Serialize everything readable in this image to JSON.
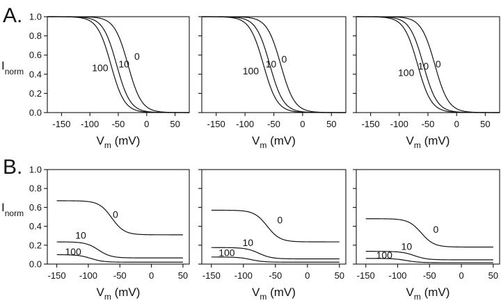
{
  "figure": {
    "panel_a_label": "A.",
    "panel_b_label": "B.",
    "y_label_main": "I",
    "y_label_sub": "norm",
    "x_label_main": "V",
    "x_label_sub": "m",
    "x_label_unit": " (mV)"
  },
  "chart_data": [
    {
      "panel": "A",
      "column": 1,
      "type": "line",
      "xlim": [
        -175,
        75
      ],
      "ylim": [
        0,
        1
      ],
      "xticks": [
        -150,
        -100,
        -50,
        0,
        50
      ],
      "yticks": [
        0.0,
        0.2,
        0.4,
        0.6,
        0.8,
        1.0
      ],
      "ytick_labels": [
        "0.0",
        "0.2",
        "0.4",
        "0.6",
        "0.8",
        "1.0"
      ],
      "show_ytick_labels": true,
      "xlabel": "Vm (mV)",
      "ylabel": "Inorm",
      "series": [
        {
          "name": "0",
          "label": "0",
          "label_at": [
            -17,
            0.55
          ],
          "base": 0.0,
          "amp": 1.0,
          "v_half": -33,
          "slope": 12
        },
        {
          "name": "10",
          "label": "10",
          "label_at": [
            -40,
            0.47
          ],
          "base": 0.0,
          "amp": 1.0,
          "v_half": -53,
          "slope": 12
        },
        {
          "name": "100",
          "label": "100",
          "label_at": [
            -82,
            0.43
          ],
          "base": 0.0,
          "amp": 1.0,
          "v_half": -63,
          "slope": 12
        }
      ]
    },
    {
      "panel": "A",
      "column": 2,
      "type": "line",
      "xlim": [
        -175,
        75
      ],
      "ylim": [
        0,
        1
      ],
      "xticks": [
        -150,
        -100,
        -50,
        0,
        50
      ],
      "yticks": [
        0.0,
        0.2,
        0.4,
        0.6,
        0.8,
        1.0
      ],
      "ytick_labels": [
        "0.0",
        "0.2",
        "0.4",
        "0.6",
        "0.8",
        "1.0"
      ],
      "show_ytick_labels": false,
      "xlabel": "Vm (mV)",
      "ylabel": "",
      "series": [
        {
          "name": "0",
          "label": "0",
          "label_at": [
            -32,
            0.52
          ],
          "base": 0.0,
          "amp": 1.0,
          "v_half": -38,
          "slope": 12
        },
        {
          "name": "10",
          "label": "10",
          "label_at": [
            -55,
            0.47
          ],
          "base": 0.0,
          "amp": 1.0,
          "v_half": -57,
          "slope": 12
        },
        {
          "name": "100",
          "label": "100",
          "label_at": [
            -90,
            0.4
          ],
          "base": 0.0,
          "amp": 1.0,
          "v_half": -68,
          "slope": 12
        }
      ]
    },
    {
      "panel": "A",
      "column": 3,
      "type": "line",
      "xlim": [
        -175,
        75
      ],
      "ylim": [
        0,
        1
      ],
      "xticks": [
        -150,
        -100,
        -50,
        0,
        50
      ],
      "yticks": [
        0.0,
        0.2,
        0.4,
        0.6,
        0.8,
        1.0
      ],
      "ytick_labels": [
        "0.0",
        "0.2",
        "0.4",
        "0.6",
        "0.8",
        "1.0"
      ],
      "show_ytick_labels": false,
      "xlabel": "Vm (mV)",
      "ylabel": "",
      "series": [
        {
          "name": "0",
          "label": "0",
          "label_at": [
            -32,
            0.47
          ],
          "base": 0.0,
          "amp": 1.0,
          "v_half": -38,
          "slope": 12
        },
        {
          "name": "10",
          "label": "10",
          "label_at": [
            -58,
            0.45
          ],
          "base": 0.0,
          "amp": 1.0,
          "v_half": -58,
          "slope": 12
        },
        {
          "name": "100",
          "label": "100",
          "label_at": [
            -88,
            0.38
          ],
          "base": 0.0,
          "amp": 1.0,
          "v_half": -68,
          "slope": 12
        }
      ]
    },
    {
      "panel": "B",
      "column": 1,
      "type": "line",
      "xlim": [
        -165,
        60
      ],
      "ylim": [
        0,
        1
      ],
      "xticks": [
        -150,
        -100,
        -50,
        0,
        50
      ],
      "yticks": [
        0.0,
        0.2,
        0.4,
        0.6,
        0.8,
        1.0
      ],
      "ytick_labels": [
        "0.0",
        "0.2",
        "0.4",
        "0.6",
        "0.8",
        "1.0"
      ],
      "show_ytick_labels": true,
      "xlabel": "Vm (mV)",
      "ylabel": "Inorm",
      "series": [
        {
          "name": "0",
          "label": "0",
          "label_at": [
            -57,
            0.49
          ],
          "base": 0.31,
          "amp": 0.36,
          "v_half": -63,
          "slope": 10
        },
        {
          "name": "10",
          "label": "10",
          "label_at": [
            -112,
            0.27
          ],
          "base": 0.065,
          "amp": 0.17,
          "v_half": -84,
          "slope": 10
        },
        {
          "name": "100",
          "label": "100",
          "label_at": [
            -124,
            0.095
          ],
          "base": 0.02,
          "amp": 0.08,
          "v_half": -96,
          "slope": 10
        }
      ]
    },
    {
      "panel": "B",
      "column": 2,
      "type": "line",
      "xlim": [
        -165,
        60
      ],
      "ylim": [
        0,
        1
      ],
      "xticks": [
        -150,
        -100,
        -50,
        0,
        50
      ],
      "yticks": [
        0.0,
        0.2,
        0.4,
        0.6,
        0.8,
        1.0
      ],
      "ytick_labels": [
        "0.0",
        "0.2",
        "0.4",
        "0.6",
        "0.8",
        "1.0"
      ],
      "show_ytick_labels": false,
      "xlabel": "Vm (mV)",
      "ylabel": "",
      "series": [
        {
          "name": "0",
          "label": "0",
          "label_at": [
            -43,
            0.43
          ],
          "base": 0.235,
          "amp": 0.335,
          "v_half": -63,
          "slope": 10
        },
        {
          "name": "10",
          "label": "10",
          "label_at": [
            -93,
            0.19
          ],
          "base": 0.055,
          "amp": 0.12,
          "v_half": -76,
          "slope": 10
        },
        {
          "name": "100",
          "label": "100",
          "label_at": [
            -126,
            0.085
          ],
          "base": 0.02,
          "amp": 0.055,
          "v_half": -88,
          "slope": 10
        }
      ]
    },
    {
      "panel": "B",
      "column": 3,
      "type": "line",
      "xlim": [
        -165,
        60
      ],
      "ylim": [
        0,
        1
      ],
      "xticks": [
        -150,
        -100,
        -50,
        0,
        50
      ],
      "yticks": [
        0.0,
        0.2,
        0.4,
        0.6,
        0.8,
        1.0
      ],
      "ytick_labels": [
        "0.0",
        "0.2",
        "0.4",
        "0.6",
        "0.8",
        "1.0"
      ],
      "show_ytick_labels": false,
      "xlabel": "Vm (mV)",
      "ylabel": "",
      "series": [
        {
          "name": "0",
          "label": "0",
          "label_at": [
            -40,
            0.33
          ],
          "base": 0.18,
          "amp": 0.3,
          "v_half": -63,
          "slope": 10
        },
        {
          "name": "10",
          "label": "10",
          "label_at": [
            -86,
            0.15
          ],
          "base": 0.045,
          "amp": 0.09,
          "v_half": -74,
          "slope": 10
        },
        {
          "name": "100",
          "label": "100",
          "label_at": [
            -121,
            0.06
          ],
          "base": 0.015,
          "amp": 0.045,
          "v_half": -86,
          "slope": 10
        }
      ]
    }
  ]
}
